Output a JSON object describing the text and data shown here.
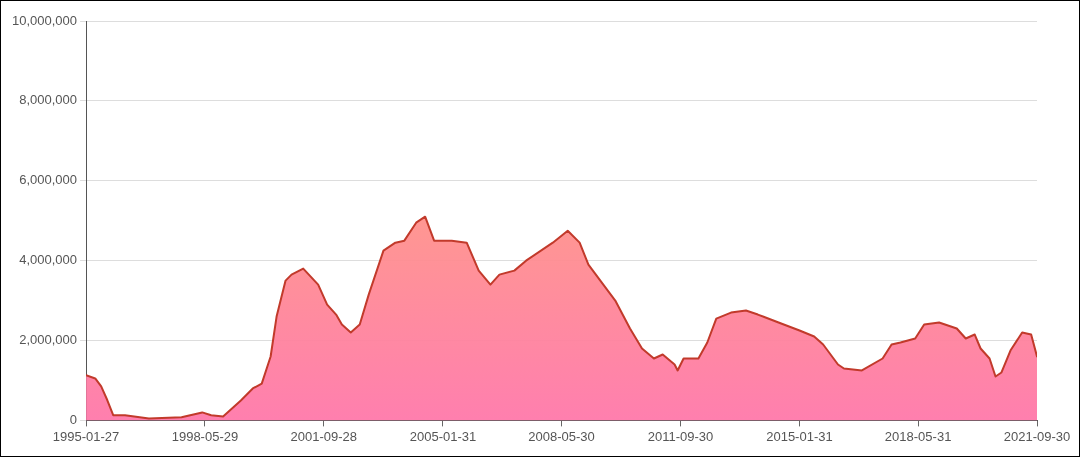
{
  "chart_data": {
    "type": "area",
    "x": [
      "1995-01-27",
      "1995-05",
      "1995-07",
      "1995-09",
      "1995-11",
      "1996-03",
      "1996-11",
      "1997-10",
      "1998-05",
      "1998-08",
      "1998-12",
      "1999-06",
      "1999-10",
      "2000-01",
      "2000-04",
      "2000-06",
      "2000-09",
      "2000-11",
      "2001-03",
      "2001-08",
      "2001-11",
      "2002-02",
      "2002-04",
      "2002-07",
      "2002-10",
      "2003-01",
      "2003-06",
      "2003-10",
      "2004-01",
      "2004-05",
      "2004-08",
      "2004-11",
      "2005-05",
      "2005-10",
      "2006-02",
      "2006-06",
      "2006-09",
      "2007-02",
      "2007-06",
      "2008-03",
      "2008-08",
      "2008-12",
      "2009-03",
      "2009-07",
      "2009-12",
      "2010-05",
      "2010-09",
      "2011-01",
      "2011-04",
      "2011-08",
      "2011-09",
      "2011-11",
      "2012-04",
      "2012-07",
      "2012-10",
      "2013-03",
      "2013-08",
      "2013-12",
      "2014-07",
      "2015-02",
      "2015-07",
      "2015-10",
      "2016-03",
      "2016-05",
      "2016-11",
      "2017-06",
      "2017-09",
      "2017-12",
      "2018-05",
      "2018-08",
      "2019-01",
      "2019-07",
      "2019-10",
      "2020-01",
      "2020-03",
      "2020-06",
      "2020-08",
      "2020-10",
      "2021-01",
      "2021-05",
      "2021-08",
      "2021-09-30"
    ],
    "series": [
      {
        "color": "#c23a2b",
        "values": [
          1130000,
          1050000,
          850000,
          510000,
          130000,
          130000,
          50000,
          80000,
          200000,
          130000,
          100000,
          500000,
          800000,
          920000,
          1600000,
          2600000,
          3500000,
          3650000,
          3800000,
          3400000,
          2900000,
          2650000,
          2400000,
          2200000,
          2400000,
          3150000,
          4250000,
          4450000,
          4500000,
          4950000,
          5100000,
          4500000,
          4500000,
          4450000,
          3750000,
          3400000,
          3650000,
          3750000,
          4000000,
          4450000,
          4750000,
          4450000,
          3900000,
          3500000,
          3000000,
          2300000,
          1800000,
          1550000,
          1650000,
          1400000,
          1250000,
          1550000,
          1550000,
          1950000,
          2550000,
          2700000,
          2750000,
          2650000,
          2450000,
          2250000,
          2100000,
          1900000,
          1400000,
          1300000,
          1250000,
          1550000,
          1900000,
          1950000,
          2050000,
          2400000,
          2450000,
          2300000,
          2050000,
          2150000,
          1800000,
          1550000,
          1100000,
          1200000,
          1750000,
          2200000,
          2150000,
          1600000
        ]
      }
    ],
    "xlim": [
      "1995-01-27",
      "2021-09-30"
    ],
    "xticks": [
      "1995-01-27",
      "1998-05-29",
      "2001-09-28",
      "2005-01-31",
      "2008-05-30",
      "2011-09-30",
      "2015-01-31",
      "2018-05-31",
      "2021-09-30"
    ],
    "ylim": [
      0,
      10000000
    ],
    "yticks": [
      {
        "value": 0,
        "label": "0"
      },
      {
        "value": 2000000,
        "label": "2,000,000"
      },
      {
        "value": 4000000,
        "label": "4,000,000"
      },
      {
        "value": 6000000,
        "label": "6,000,000"
      },
      {
        "value": 8000000,
        "label": "8,000,000"
      },
      {
        "value": 10000000,
        "label": "10,000,000"
      }
    ],
    "grid": "y",
    "marker": "none",
    "line_style": "solid"
  }
}
